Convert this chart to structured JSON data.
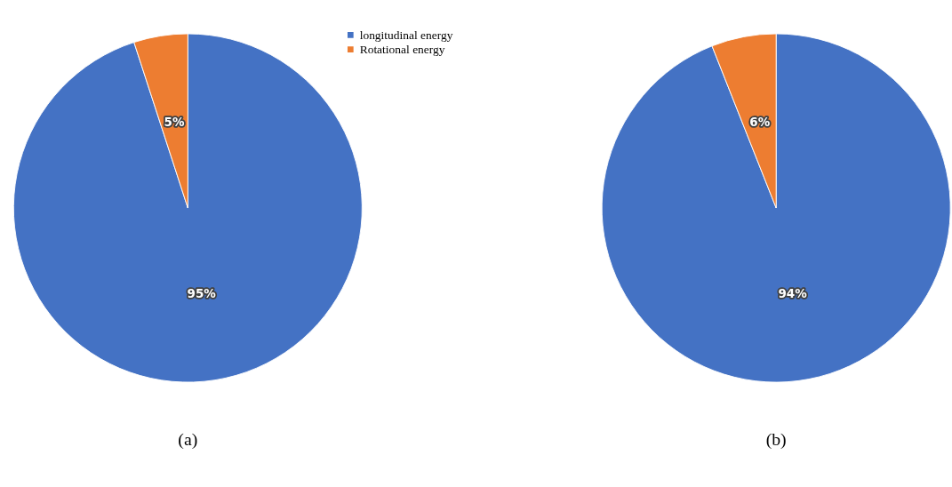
{
  "chart_data": [
    {
      "type": "pie",
      "categories": [
        "longitudinal energy",
        "Rotational energy"
      ],
      "values": [
        95,
        5
      ],
      "colors": [
        "#4472c4",
        "#ed7d31"
      ],
      "value_labels": [
        "95%",
        "5%"
      ],
      "legend": "top right",
      "annotations": [
        "(a)"
      ]
    },
    {
      "type": "pie",
      "categories": [
        null,
        null
      ],
      "values": [
        94,
        6
      ],
      "colors": [
        "#4472c4",
        "#ed7d31"
      ],
      "value_labels": [
        "94%",
        "6%"
      ],
      "legend": false,
      "annotations": [
        "(b)"
      ]
    }
  ]
}
